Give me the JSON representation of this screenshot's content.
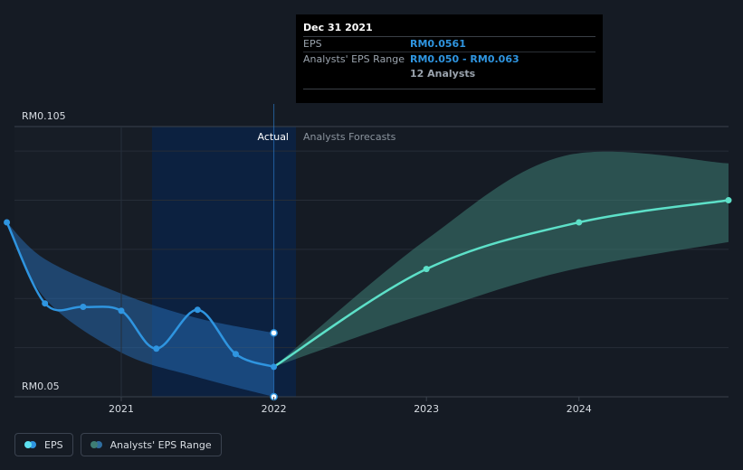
{
  "tooltip": {
    "date": "Dec 31 2021",
    "eps_label": "EPS",
    "eps_value": "RM0.0561",
    "range_label": "Analysts' EPS Range",
    "range_value": "RM0.050 - RM0.063",
    "analysts": "12 Analysts"
  },
  "legend": {
    "eps": "EPS",
    "range": "Analysts' EPS Range"
  },
  "chart_data": {
    "type": "line",
    "y_tick_labels": [
      "RM0.105",
      "RM0.05"
    ],
    "ylim": [
      0.05,
      0.105
    ],
    "xlim": [
      2020.3,
      2024.98
    ],
    "x_tick_labels": [
      "2021",
      "2022",
      "2023",
      "2024"
    ],
    "x_ticks": [
      2021,
      2022,
      2023,
      2024
    ],
    "region_labels": {
      "actual": "Actual",
      "forecast": "Analysts Forecasts"
    },
    "divider_x": 2022,
    "past_band_start": 2021,
    "eps_actual": {
      "x": [
        2020.25,
        2020.5,
        2020.75,
        2021.0,
        2021.23,
        2021.5,
        2021.75,
        2022.0
      ],
      "y": [
        0.0855,
        0.069,
        0.0683,
        0.0675,
        0.0598,
        0.0677,
        0.0587,
        0.0561
      ],
      "color": "#2f95e0"
    },
    "eps_range_past": {
      "x": [
        2020.25,
        2020.5,
        2021.0,
        2021.5,
        2022.0
      ],
      "upper": [
        0.0855,
        0.078,
        0.071,
        0.066,
        0.063
      ],
      "lower": [
        0.0855,
        0.07,
        0.059,
        0.054,
        0.05
      ],
      "color": "#2f95e0"
    },
    "eps_forecast": {
      "x": [
        2022.0,
        2023.0,
        2024.0,
        2024.98
      ],
      "y": [
        0.0561,
        0.076,
        0.0855,
        0.09
      ],
      "color": "#5de0c8"
    },
    "eps_range_forecast": {
      "x": [
        2022.0,
        2023.0,
        2023.9,
        2024.98
      ],
      "upper": [
        0.0561,
        0.082,
        0.099,
        0.0975
      ],
      "lower": [
        0.0561,
        0.067,
        0.0755,
        0.0815
      ],
      "color": "#3e7d74"
    },
    "highlight_points": [
      {
        "x": 2022.0,
        "y": 0.063
      },
      {
        "x": 2022.0,
        "y": 0.05
      }
    ],
    "grid": true
  }
}
